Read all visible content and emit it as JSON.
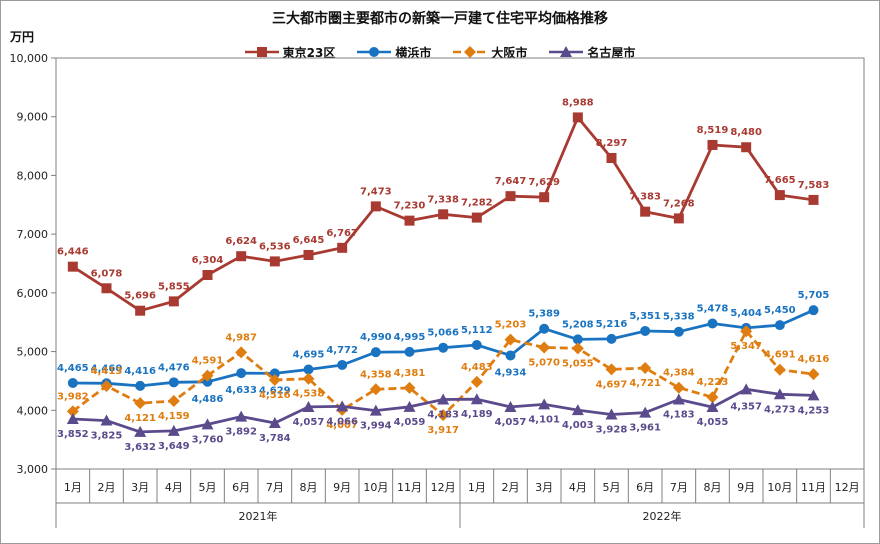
{
  "chart_data": {
    "type": "line",
    "title": "三大都市圏主要都市の新築一戸建て住宅平均価格推移",
    "ylabel": "万円",
    "ylim": [
      3000,
      10000
    ],
    "yticks": [
      "3,000",
      "4,000",
      "5,000",
      "6,000",
      "7,000",
      "8,000",
      "9,000",
      "10,000"
    ],
    "categories": [
      "1月",
      "2月",
      "3月",
      "4月",
      "5月",
      "6月",
      "7月",
      "8月",
      "9月",
      "10月",
      "11月",
      "12月",
      "1月",
      "2月",
      "3月",
      "4月",
      "5月",
      "6月",
      "7月",
      "8月",
      "9月",
      "10月",
      "11月",
      "12月"
    ],
    "years": [
      {
        "label": "2021年",
        "span": [
          0,
          11
        ]
      },
      {
        "label": "2022年",
        "span": [
          12,
          23
        ]
      }
    ],
    "legend_position": "top",
    "series": [
      {
        "name": "東京23区",
        "color": "#a83a32",
        "marker": "square",
        "dash": "none",
        "values": [
          6446,
          6078,
          5696,
          5855,
          6304,
          6624,
          6536,
          6645,
          6767,
          7473,
          7230,
          7338,
          7282,
          7647,
          7629,
          8988,
          8297,
          7383,
          7268,
          8519,
          8480,
          7665,
          7583,
          null
        ],
        "labels": [
          "6,446",
          "6,078",
          "5,696",
          "5,855",
          "6,304",
          "6,624",
          "6,536",
          "6,645",
          "6,767",
          "7,473",
          "7,230",
          "7,338",
          "7,282",
          "7,647",
          "7,629",
          "8,988",
          "8,297",
          "7,383",
          "7,268",
          "8,519",
          "8,480",
          "7,665",
          "7,583",
          ""
        ]
      },
      {
        "name": "横浜市",
        "color": "#1a73c0",
        "marker": "circle",
        "dash": "none",
        "values": [
          4465,
          4460,
          4416,
          4476,
          4486,
          4633,
          4629,
          4695,
          4772,
          4990,
          4995,
          5066,
          5112,
          4934,
          5389,
          5208,
          5216,
          5351,
          5338,
          5478,
          5404,
          5450,
          5705,
          null
        ],
        "labels": [
          "4,465",
          "4,460",
          "4,416",
          "4,476",
          "4,486",
          "4,633",
          "4,629",
          "4,695",
          "4,772",
          "4,990",
          "4,995",
          "5,066",
          "5,112",
          "4,934",
          "5,389",
          "5,208",
          "5,216",
          "5,351",
          "5,338",
          "5,478",
          "5,404",
          "5,450",
          "5,705",
          ""
        ]
      },
      {
        "name": "大阪市",
        "color": "#e07d10",
        "marker": "diamond",
        "dash": "8,4",
        "values": [
          3982,
          4413,
          4121,
          4159,
          4591,
          4987,
          4516,
          4538,
          4007,
          4358,
          4381,
          3917,
          4483,
          5203,
          5070,
          5055,
          4697,
          4721,
          4384,
          4223,
          5347,
          4691,
          4616,
          null
        ],
        "labels": [
          "3,982",
          "4,413",
          "4,121",
          "4,159",
          "4,591",
          "4,987",
          "4,516",
          "4,538",
          "4,007",
          "4,358",
          "4,381",
          "3,917",
          "4,483",
          "5,203",
          "5,070",
          "5,055",
          "4,697",
          "4,721",
          "4,384",
          "4,223",
          "5,347",
          "4,691",
          "4,616",
          ""
        ]
      },
      {
        "name": "名古屋市",
        "color": "#5b4a8c",
        "marker": "triangle",
        "dash": "none",
        "values": [
          3852,
          3825,
          3632,
          3649,
          3760,
          3892,
          3784,
          4057,
          4066,
          3994,
          4059,
          4183,
          4189,
          4057,
          4101,
          4003,
          3928,
          3961,
          4183,
          4055,
          4357,
          4273,
          4253,
          null
        ],
        "labels": [
          "3,852",
          "3,825",
          "3,632",
          "3,649",
          "3,760",
          "3,892",
          "3,784",
          "4,057",
          "4,066",
          "3,994",
          "4,059",
          "4,183",
          "4,189",
          "4,057",
          "4,101",
          "4,003",
          "3,928",
          "3,961",
          "4,183",
          "4,055",
          "4,357",
          "4,273",
          "4,253",
          ""
        ]
      }
    ]
  }
}
